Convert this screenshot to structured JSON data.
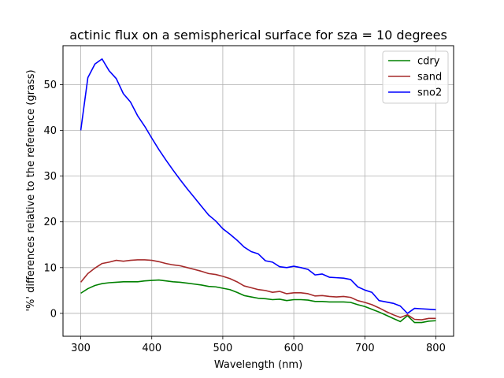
{
  "chart_data": {
    "type": "line",
    "title": "actinic flux on a semispherical surface for sza = 10 degrees",
    "xlabel": "Wavelength (nm)",
    "ylabel": "'%' differences relative to the reference (grass)",
    "xlim": [
      275,
      825
    ],
    "ylim": [
      -5,
      58.5
    ],
    "xticks": [
      300,
      400,
      500,
      600,
      700,
      800
    ],
    "yticks": [
      0,
      10,
      20,
      30,
      40,
      50
    ],
    "grid": true,
    "legend_position": "top-right",
    "x": [
      300,
      310,
      320,
      330,
      340,
      350,
      360,
      370,
      380,
      390,
      400,
      410,
      420,
      430,
      440,
      450,
      460,
      470,
      480,
      490,
      500,
      510,
      520,
      530,
      540,
      550,
      560,
      570,
      580,
      590,
      600,
      610,
      620,
      630,
      640,
      650,
      660,
      670,
      680,
      690,
      700,
      710,
      720,
      730,
      740,
      750,
      760,
      770,
      780,
      790,
      800
    ],
    "series": [
      {
        "name": "cdry",
        "color": "#008000",
        "values": [
          4.4,
          5.4,
          6.1,
          6.5,
          6.7,
          6.8,
          6.9,
          6.9,
          6.9,
          7.1,
          7.2,
          7.3,
          7.1,
          6.9,
          6.8,
          6.6,
          6.4,
          6.2,
          5.9,
          5.8,
          5.5,
          5.2,
          4.6,
          3.9,
          3.6,
          3.3,
          3.2,
          3.0,
          3.1,
          2.8,
          3.0,
          3.0,
          2.9,
          2.6,
          2.6,
          2.5,
          2.5,
          2.5,
          2.4,
          1.9,
          1.5,
          0.9,
          0.3,
          -0.4,
          -1.1,
          -1.8,
          -0.5,
          -2.0,
          -2.0,
          -1.7,
          -1.6
        ]
      },
      {
        "name": "sand",
        "color": "#a52a2a",
        "values": [
          6.8,
          8.7,
          9.9,
          10.9,
          11.2,
          11.6,
          11.4,
          11.6,
          11.7,
          11.7,
          11.6,
          11.3,
          10.9,
          10.6,
          10.4,
          10.0,
          9.6,
          9.2,
          8.7,
          8.5,
          8.1,
          7.6,
          6.9,
          6.0,
          5.6,
          5.2,
          5.0,
          4.6,
          4.8,
          4.3,
          4.5,
          4.5,
          4.3,
          3.8,
          3.9,
          3.7,
          3.6,
          3.7,
          3.5,
          2.8,
          2.4,
          1.9,
          1.2,
          0.4,
          -0.3,
          -0.9,
          -0.3,
          -1.3,
          -1.4,
          -1.1,
          -1.1
        ]
      },
      {
        "name": "sno2",
        "color": "#0000ff",
        "values": [
          40.0,
          51.5,
          54.5,
          55.6,
          53.0,
          51.3,
          48.0,
          46.2,
          43.2,
          40.9,
          38.3,
          35.8,
          33.5,
          31.3,
          29.2,
          27.2,
          25.3,
          23.4,
          21.5,
          20.2,
          18.5,
          17.3,
          16.0,
          14.5,
          13.5,
          13.0,
          11.5,
          11.2,
          10.2,
          10.0,
          10.3,
          10.0,
          9.6,
          8.4,
          8.6,
          7.9,
          7.8,
          7.7,
          7.4,
          5.8,
          5.1,
          4.6,
          2.8,
          2.5,
          2.2,
          1.6,
          0.0,
          1.1,
          1.0,
          0.9,
          0.8
        ]
      }
    ]
  }
}
